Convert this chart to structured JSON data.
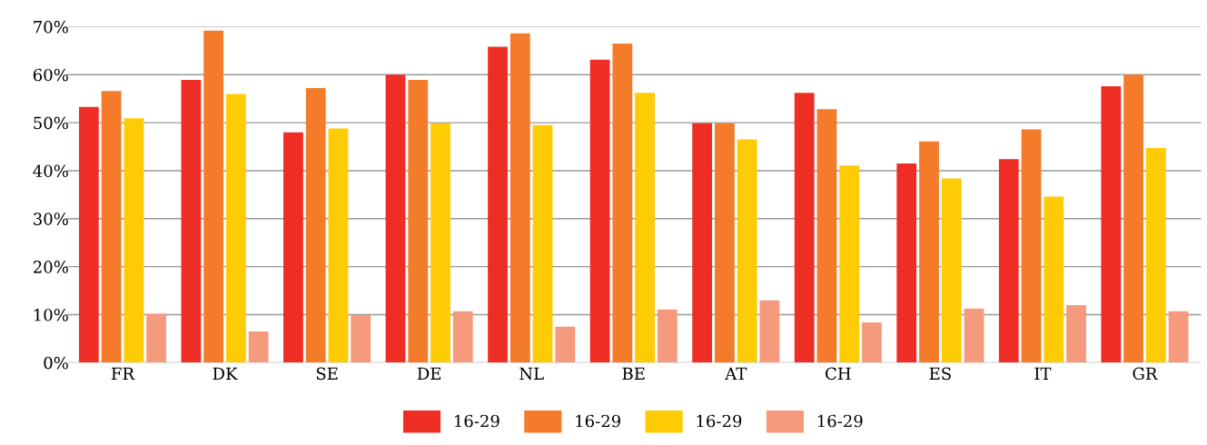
{
  "chart_data": {
    "type": "bar",
    "categories": [
      "FR",
      "DK",
      "SE",
      "DE",
      "NL",
      "BE",
      "AT",
      "CH",
      "ES",
      "IT",
      "GR"
    ],
    "series": [
      {
        "name": "16-29",
        "color": "#ee2e24",
        "values": [
          53.3,
          58.9,
          48.0,
          60.0,
          65.8,
          63.1,
          49.9,
          56.2,
          41.5,
          42.4,
          57.6
        ]
      },
      {
        "name": "16-29",
        "color": "#f47b2a",
        "values": [
          56.6,
          69.2,
          57.2,
          58.9,
          68.6,
          66.5,
          49.9,
          52.8,
          46.1,
          48.6,
          60.0
        ]
      },
      {
        "name": "16-29",
        "color": "#ffcb05",
        "values": [
          50.9,
          56.0,
          48.8,
          49.9,
          49.5,
          56.2,
          46.5,
          41.1,
          38.4,
          34.6,
          44.7
        ]
      },
      {
        "name": "16-29",
        "color": "#f69a7d",
        "values": [
          10.2,
          6.5,
          9.9,
          10.7,
          7.5,
          11.1,
          13.0,
          8.4,
          11.3,
          12.0,
          10.7
        ]
      }
    ],
    "ylim": [
      0,
      70
    ],
    "yticks": [
      {
        "value": 0,
        "label": "0%"
      },
      {
        "value": 10,
        "label": "10%"
      },
      {
        "value": 20,
        "label": "20%"
      },
      {
        "value": 30,
        "label": "30%"
      },
      {
        "value": 40,
        "label": "40%"
      },
      {
        "value": 50,
        "label": "50%"
      },
      {
        "value": 60,
        "label": "60%"
      },
      {
        "value": 70,
        "label": "70%"
      }
    ],
    "grid": "y",
    "legend": "bottom"
  }
}
